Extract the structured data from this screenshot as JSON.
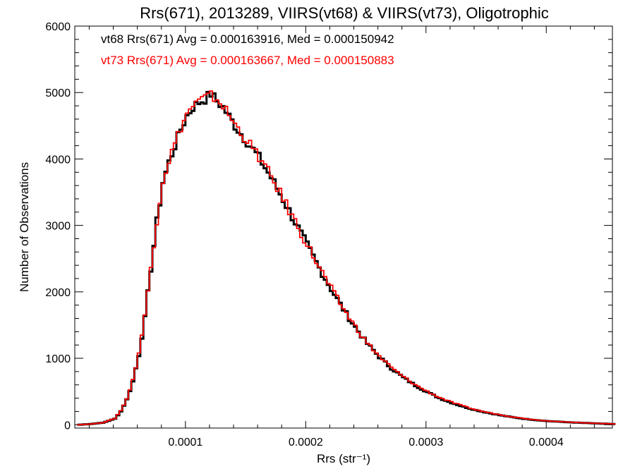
{
  "chart_data": {
    "type": "line",
    "title": "Rrs(671), 2013289, VIIRS(vt68) & VIIRS(vt73), Oligotrophic",
    "xlabel": "Rrs (str⁻¹)",
    "ylabel": "Number of Observations",
    "xlim": [
      8e-06,
      0.000455
    ],
    "ylim": [
      -50,
      6000
    ],
    "grid": false,
    "legend_placement": "top-left",
    "xticks": [
      {
        "value": 0.0001,
        "label": "0.0001"
      },
      {
        "value": 0.0002,
        "label": "0.0002"
      },
      {
        "value": 0.0003,
        "label": "0.0003"
      },
      {
        "value": 0.0004,
        "label": "0.0004"
      }
    ],
    "yticks": [
      {
        "value": 0,
        "label": "0"
      },
      {
        "value": 1000,
        "label": "1000"
      },
      {
        "value": 2000,
        "label": "2000"
      },
      {
        "value": 3000,
        "label": "3000"
      },
      {
        "value": 4000,
        "label": "4000"
      },
      {
        "value": 5000,
        "label": "5000"
      },
      {
        "value": 6000,
        "label": "6000"
      }
    ],
    "series": [
      {
        "name": "vt68",
        "color": "#000000",
        "legend_text": "vt68 Rrs(671) Avg = 0.000163916, Med = 0.000150942",
        "x": [
          1e-05,
          2e-05,
          3e-05,
          4e-05,
          4.5e-05,
          5e-05,
          5.5e-05,
          6e-05,
          6.5e-05,
          7e-05,
          7.5e-05,
          8e-05,
          8.5e-05,
          9e-05,
          9.5e-05,
          0.0001,
          0.000105,
          0.00011,
          0.000115,
          0.00012,
          0.000125,
          0.00013,
          0.000135,
          0.00014,
          0.000145,
          0.00015,
          0.000155,
          0.00016,
          0.000165,
          0.00017,
          0.000175,
          0.00018,
          0.000185,
          0.00019,
          0.000195,
          0.0002,
          0.000205,
          0.00021,
          0.000215,
          0.00022,
          0.000225,
          0.00023,
          0.000235,
          0.00024,
          0.000245,
          0.00025,
          0.00026,
          0.00027,
          0.00028,
          0.00029,
          0.0003,
          0.00031,
          0.00032,
          0.00033,
          0.00034,
          0.00035,
          0.00036,
          0.00037,
          0.00038,
          0.00039,
          0.0004,
          0.00042,
          0.00044,
          0.000455
        ],
        "y": [
          0,
          10,
          30,
          90,
          200,
          380,
          650,
          1050,
          1600,
          2350,
          3050,
          3650,
          3950,
          4200,
          4450,
          4650,
          4780,
          4850,
          4900,
          4980,
          4870,
          4780,
          4640,
          4500,
          4380,
          4260,
          4140,
          4020,
          3870,
          3720,
          3560,
          3390,
          3220,
          3050,
          2870,
          2700,
          2530,
          2360,
          2200,
          2040,
          1890,
          1740,
          1600,
          1470,
          1340,
          1220,
          1020,
          850,
          710,
          590,
          490,
          400,
          330,
          270,
          220,
          180,
          145,
          115,
          90,
          70,
          55,
          35,
          20,
          10
        ]
      },
      {
        "name": "vt73",
        "color": "#ff0000",
        "legend_text": "vt73 Rrs(671) Avg = 0.000163667, Med = 0.000150883",
        "x": [
          1e-05,
          2e-05,
          3e-05,
          4e-05,
          4.5e-05,
          5e-05,
          5.5e-05,
          6e-05,
          6.5e-05,
          7e-05,
          7.5e-05,
          8e-05,
          8.5e-05,
          9e-05,
          9.5e-05,
          0.0001,
          0.000105,
          0.00011,
          0.000115,
          0.00012,
          0.000125,
          0.00013,
          0.000135,
          0.00014,
          0.000145,
          0.00015,
          0.000155,
          0.00016,
          0.000165,
          0.00017,
          0.000175,
          0.00018,
          0.000185,
          0.00019,
          0.000195,
          0.0002,
          0.000205,
          0.00021,
          0.000215,
          0.00022,
          0.000225,
          0.00023,
          0.000235,
          0.00024,
          0.000245,
          0.00025,
          0.00026,
          0.00027,
          0.00028,
          0.00029,
          0.0003,
          0.00031,
          0.00032,
          0.00033,
          0.00034,
          0.00035,
          0.00036,
          0.00037,
          0.00038,
          0.00039,
          0.0004,
          0.00042,
          0.00044,
          0.000455
        ],
        "y": [
          0,
          10,
          30,
          95,
          210,
          390,
          670,
          1080,
          1630,
          2380,
          3080,
          3680,
          3980,
          4230,
          4480,
          4680,
          4800,
          4870,
          4920,
          4950,
          4900,
          4800,
          4660,
          4520,
          4400,
          4270,
          4150,
          4030,
          3880,
          3730,
          3570,
          3400,
          3230,
          3060,
          2880,
          2710,
          2540,
          2370,
          2210,
          2050,
          1900,
          1750,
          1610,
          1480,
          1350,
          1230,
          1030,
          860,
          720,
          600,
          500,
          410,
          340,
          280,
          225,
          185,
          150,
          120,
          95,
          72,
          57,
          37,
          22,
          12
        ]
      }
    ]
  }
}
